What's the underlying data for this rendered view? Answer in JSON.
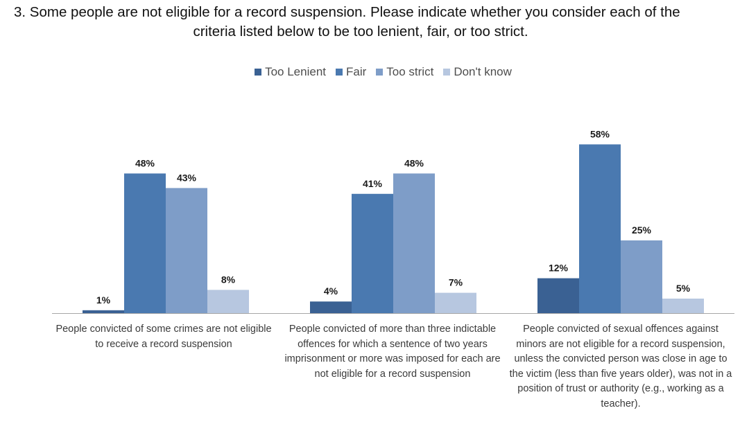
{
  "chart_data": {
    "type": "bar",
    "title_line1": "3. Some people are not eligible for a record suspension. Please indicate whether you consider each of the",
    "title_line2": "criteria listed below to be too lenient, fair, or too strict.",
    "categories": [
      "People convicted of some crimes are not eligible to receive a record suspension",
      "People convicted of more than three indictable offences for which a sentence of two years imprisonment or more was imposed for each are not eligible for a record suspension",
      "People convicted of sexual offences against minors are not eligible for a record suspension, unless the convicted person was close in age to the victim (less than five years older), was not in a position of trust or authority (e.g., working as a teacher)."
    ],
    "series": [
      {
        "name": "Too Lenient",
        "color": "#3a6193",
        "values": [
          1,
          4,
          12
        ],
        "labels": [
          "1%",
          "4%",
          "12%"
        ]
      },
      {
        "name": "Fair",
        "color": "#4a79b0",
        "values": [
          48,
          41,
          58
        ],
        "labels": [
          "48%",
          "41%",
          "58%"
        ]
      },
      {
        "name": "Too strict",
        "color": "#7e9dc8",
        "values": [
          43,
          48,
          25
        ],
        "labels": [
          "43%",
          "48%",
          "25%"
        ]
      },
      {
        "name": "Don't know",
        "color": "#b7c7e0",
        "values": [
          8,
          7,
          5
        ],
        "labels": [
          "8%",
          "7%",
          "5%"
        ]
      }
    ],
    "ylim": [
      0,
      60
    ],
    "grid": false,
    "legend_position": "top"
  }
}
